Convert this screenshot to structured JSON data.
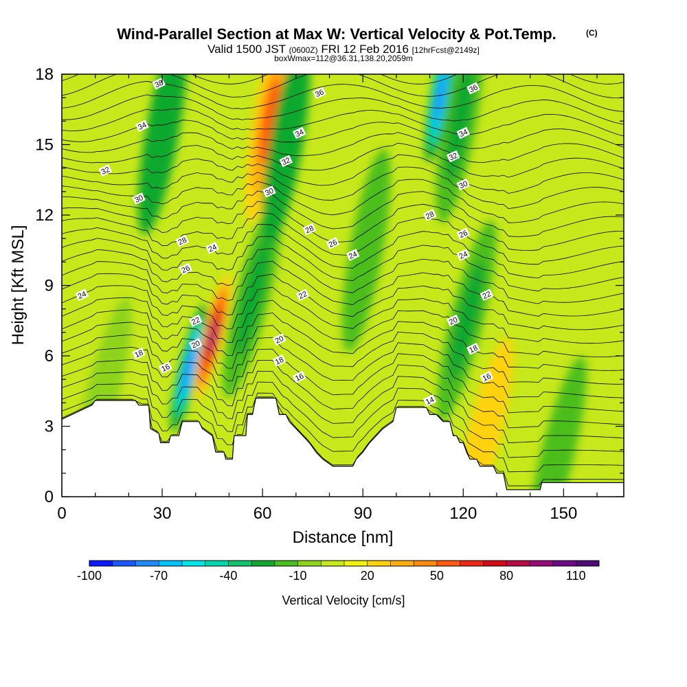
{
  "chart_data": {
    "type": "heatmap",
    "title": "Wind-Parallel Section at Max W: Vertical Velocity & Pot.Temp.",
    "title_mark": "(C)",
    "subtitle": {
      "valid": "Valid 1500 JST",
      "utc": "(0600Z)",
      "date": "FRI 12 Feb 2016",
      "forecast": "[12hrFcst@2149z]",
      "box": "boxWmax=112@36.31,138.20,2059m"
    },
    "xlabel": "Distance [nm]",
    "ylabel": "Height [Kft MSL]",
    "xlim": [
      0,
      168
    ],
    "ylim": [
      0,
      18
    ],
    "x_ticks": [
      0,
      30,
      60,
      90,
      120,
      150
    ],
    "y_ticks": [
      0,
      3,
      6,
      9,
      12,
      15,
      18
    ],
    "colorbar": {
      "label": "Vertical Velocity [cm/s]",
      "tick_labels": [
        "-100",
        "-70",
        "-40",
        "-10",
        "20",
        "50",
        "80",
        "110"
      ],
      "colors": [
        "#0c19ff",
        "#1b57ff",
        "#1f8bff",
        "#00c4ff",
        "#00e5e8",
        "#00d8b0",
        "#13c46f",
        "#11a92d",
        "#4cbe1f",
        "#8ed31d",
        "#c7e81b",
        "#f2f20f",
        "#ffd20a",
        "#ffae0b",
        "#ff8a0d",
        "#ff5a10",
        "#ef2614",
        "#d40a16",
        "#b90a48",
        "#99087a",
        "#6e0a86",
        "#4e0a78"
      ]
    },
    "vertical_velocity_features": [
      {
        "x": 12,
        "center": 4.2,
        "value": -10
      },
      {
        "x": 30,
        "center": 15.5,
        "value": -25
      },
      {
        "x": 38,
        "center": 5.5,
        "value": -80
      },
      {
        "x": 45,
        "center": 6.8,
        "value": 90
      },
      {
        "x": 57,
        "center": 8.5,
        "value": -30
      },
      {
        "x": 62,
        "center": 16,
        "value": 50
      },
      {
        "x": 67,
        "center": 15,
        "value": -25
      },
      {
        "x": 91,
        "center": 10.5,
        "value": -20
      },
      {
        "x": 113,
        "center": 17,
        "value": -80
      },
      {
        "x": 119,
        "center": 16,
        "value": -30
      },
      {
        "x": 121,
        "center": 7.5,
        "value": -30
      },
      {
        "x": 126,
        "center": 2.5,
        "value": 20
      },
      {
        "x": 148,
        "center": 1.7,
        "value": -20
      }
    ],
    "potential_temperature_contour_labels": [
      {
        "label": "38",
        "x": 29,
        "y": 17.6
      },
      {
        "label": "36",
        "x": 77,
        "y": 17.2
      },
      {
        "label": "36",
        "x": 123,
        "y": 17.4
      },
      {
        "label": "34",
        "x": 24,
        "y": 15.8
      },
      {
        "label": "34",
        "x": 71,
        "y": 15.5
      },
      {
        "label": "34",
        "x": 120,
        "y": 15.5
      },
      {
        "label": "32",
        "x": 13,
        "y": 13.9
      },
      {
        "label": "32",
        "x": 67,
        "y": 14.3
      },
      {
        "label": "32",
        "x": 117,
        "y": 14.5
      },
      {
        "label": "30",
        "x": 23,
        "y": 12.7
      },
      {
        "label": "30",
        "x": 62,
        "y": 13
      },
      {
        "label": "30",
        "x": 120,
        "y": 13.3
      },
      {
        "label": "28",
        "x": 36,
        "y": 10.9
      },
      {
        "label": "28",
        "x": 74,
        "y": 11.4
      },
      {
        "label": "28",
        "x": 110,
        "y": 12
      },
      {
        "label": "26",
        "x": 37,
        "y": 9.7
      },
      {
        "label": "26",
        "x": 81,
        "y": 10.8
      },
      {
        "label": "26",
        "x": 120,
        "y": 11.2
      },
      {
        "label": "24",
        "x": 6,
        "y": 8.6
      },
      {
        "label": "24",
        "x": 45,
        "y": 10.6
      },
      {
        "label": "24",
        "x": 87,
        "y": 10.3
      },
      {
        "label": "24",
        "x": 120,
        "y": 10.3
      },
      {
        "label": "22",
        "x": 40,
        "y": 7.5
      },
      {
        "label": "22",
        "x": 72,
        "y": 8.6
      },
      {
        "label": "22",
        "x": 127,
        "y": 8.6
      },
      {
        "label": "20",
        "x": 40,
        "y": 6.5
      },
      {
        "label": "20",
        "x": 65,
        "y": 6.7
      },
      {
        "label": "20",
        "x": 117,
        "y": 7.5
      },
      {
        "label": "18",
        "x": 23,
        "y": 6.1
      },
      {
        "label": "18",
        "x": 65,
        "y": 5.8
      },
      {
        "label": "18",
        "x": 123,
        "y": 6.3
      },
      {
        "label": "16",
        "x": 31,
        "y": 5.5
      },
      {
        "label": "16",
        "x": 71,
        "y": 5.1
      },
      {
        "label": "16",
        "x": 127,
        "y": 5.1
      },
      {
        "label": "14",
        "x": 110,
        "y": 4.1
      }
    ],
    "terrain_kft": [
      {
        "x": 0,
        "h": 3.3
      },
      {
        "x": 3,
        "h": 3.5
      },
      {
        "x": 6,
        "h": 3.7
      },
      {
        "x": 9,
        "h": 3.9
      },
      {
        "x": 10,
        "h": 4.1
      },
      {
        "x": 22,
        "h": 4.1
      },
      {
        "x": 23,
        "h": 3.9
      },
      {
        "x": 26,
        "h": 3.9
      },
      {
        "x": 26.5,
        "h": 2.9
      },
      {
        "x": 29,
        "h": 2.7
      },
      {
        "x": 29.5,
        "h": 2.3
      },
      {
        "x": 32,
        "h": 2.3
      },
      {
        "x": 32.5,
        "h": 2.6
      },
      {
        "x": 35,
        "h": 2.6
      },
      {
        "x": 36,
        "h": 3.2
      },
      {
        "x": 41,
        "h": 3.2
      },
      {
        "x": 42,
        "h": 2.9
      },
      {
        "x": 45,
        "h": 2.6
      },
      {
        "x": 46,
        "h": 1.9
      },
      {
        "x": 48.5,
        "h": 1.9
      },
      {
        "x": 49,
        "h": 1.6
      },
      {
        "x": 51,
        "h": 1.6
      },
      {
        "x": 51.5,
        "h": 2.6
      },
      {
        "x": 55,
        "h": 2.6
      },
      {
        "x": 55.5,
        "h": 3.5
      },
      {
        "x": 57,
        "h": 3.5
      },
      {
        "x": 58,
        "h": 4.2
      },
      {
        "x": 64,
        "h": 4.2
      },
      {
        "x": 65,
        "h": 3.5
      },
      {
        "x": 67,
        "h": 3.5
      },
      {
        "x": 68,
        "h": 3.2
      },
      {
        "x": 70,
        "h": 2.9
      },
      {
        "x": 72,
        "h": 2.6
      },
      {
        "x": 74,
        "h": 2.3
      },
      {
        "x": 76,
        "h": 1.9
      },
      {
        "x": 78,
        "h": 1.6
      },
      {
        "x": 81,
        "h": 1.3
      },
      {
        "x": 87,
        "h": 1.3
      },
      {
        "x": 88,
        "h": 1.6
      },
      {
        "x": 90,
        "h": 1.9
      },
      {
        "x": 92,
        "h": 2.3
      },
      {
        "x": 94,
        "h": 2.6
      },
      {
        "x": 96,
        "h": 2.9
      },
      {
        "x": 99,
        "h": 3.2
      },
      {
        "x": 100,
        "h": 3.8
      },
      {
        "x": 109,
        "h": 3.8
      },
      {
        "x": 110,
        "h": 3.5
      },
      {
        "x": 112,
        "h": 3.5
      },
      {
        "x": 114,
        "h": 3.2
      },
      {
        "x": 116,
        "h": 3.2
      },
      {
        "x": 117,
        "h": 2.6
      },
      {
        "x": 118,
        "h": 2.6
      },
      {
        "x": 119,
        "h": 2.3
      },
      {
        "x": 120,
        "h": 2.3
      },
      {
        "x": 121,
        "h": 1.9
      },
      {
        "x": 122,
        "h": 1.6
      },
      {
        "x": 124,
        "h": 1.6
      },
      {
        "x": 125,
        "h": 1.3
      },
      {
        "x": 129,
        "h": 1.3
      },
      {
        "x": 130,
        "h": 1.0
      },
      {
        "x": 132,
        "h": 1.0
      },
      {
        "x": 133,
        "h": 0.3
      },
      {
        "x": 143,
        "h": 0.3
      },
      {
        "x": 143.5,
        "h": 0.6
      },
      {
        "x": 168,
        "h": 0.6
      }
    ]
  }
}
